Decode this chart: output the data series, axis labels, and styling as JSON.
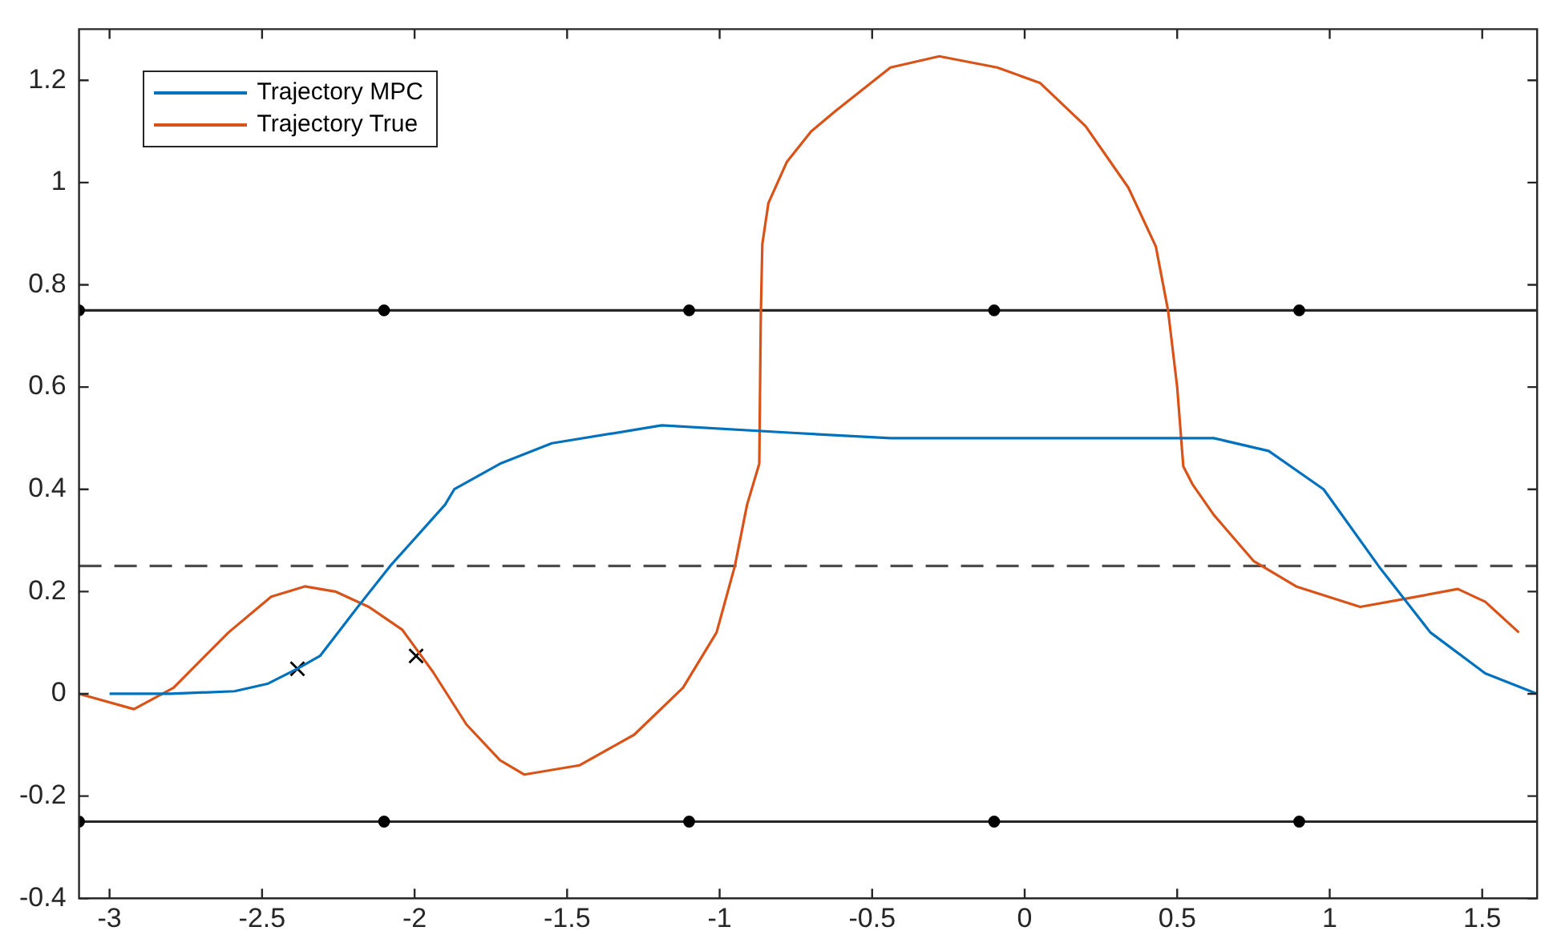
{
  "chart_data": {
    "type": "line",
    "xlim": [
      -3.1,
      1.68
    ],
    "ylim": [
      -0.4,
      1.3
    ],
    "xticks": [
      -3,
      -2.5,
      -2,
      -1.5,
      -1,
      -0.5,
      0,
      0.5,
      1,
      1.5
    ],
    "yticks": [
      -0.4,
      -0.2,
      0,
      0.2,
      0.4,
      0.6,
      0.8,
      1,
      1.2
    ],
    "grid": false,
    "legend": "top left",
    "series": [
      {
        "name": "Trajectory MPC",
        "color": "#0072bd",
        "marker": "none",
        "x": [
          -3.0,
          -2.8,
          -2.59,
          -2.48,
          -2.384,
          -2.31,
          -2.19,
          -2.08,
          -1.9,
          -1.87,
          -1.72,
          -1.55,
          -1.19,
          -0.75,
          -0.44,
          0.44,
          0.62,
          0.8,
          0.98,
          1.16,
          1.33,
          1.51,
          1.68
        ],
        "values": [
          0,
          0,
          0.005,
          0.02,
          0.049,
          0.074,
          0.167,
          0.25,
          0.37,
          0.4,
          0.45,
          0.49,
          0.525,
          0.51,
          0.5,
          0.5,
          0.5,
          0.475,
          0.4,
          0.25,
          0.12,
          0.04,
          0
        ]
      },
      {
        "name": "Trajectory True",
        "color": "#d95319",
        "marker": "none",
        "x": [
          -3.1,
          -2.92,
          -2.79,
          -2.61,
          -2.47,
          -2.36,
          -2.26,
          -2.15,
          -2.04,
          -1.94,
          -1.83,
          -1.72,
          -1.64,
          -1.46,
          -1.28,
          -1.12,
          -1.01,
          -0.95,
          -0.91,
          -0.87,
          -0.865,
          -0.86,
          -0.84,
          -0.78,
          -0.7,
          -0.62,
          -0.44,
          -0.28,
          -0.09,
          0.05,
          0.2,
          0.34,
          0.43,
          0.47,
          0.5,
          0.52,
          0.55,
          0.62,
          0.75,
          0.89,
          1.1,
          1.24,
          1.42,
          1.51,
          1.62
        ],
        "values": [
          0,
          -0.03,
          0.012,
          0.12,
          0.19,
          0.21,
          0.2,
          0.17,
          0.125,
          0.043,
          -0.06,
          -0.13,
          -0.158,
          -0.14,
          -0.08,
          0.012,
          0.12,
          0.25,
          0.37,
          0.45,
          0.74,
          0.88,
          0.96,
          1.04,
          1.1,
          1.14,
          1.225,
          1.247,
          1.225,
          1.195,
          1.11,
          0.99,
          0.875,
          0.75,
          0.6,
          0.445,
          0.41,
          0.35,
          0.26,
          0.21,
          0.17,
          0.185,
          0.205,
          0.18,
          0.12
        ]
      },
      {
        "type": "scatter",
        "color": "#000000",
        "marker": "cross",
        "x": [
          -2.384,
          -1.995
        ],
        "values": [
          0.049,
          0.074
        ]
      },
      {
        "type": "scatter",
        "color": "#000000",
        "marker": "circle",
        "x": [
          -3.1,
          -2.1,
          -1.1,
          -0.1,
          0.9,
          -3.1,
          -2.1,
          -1.1,
          -0.1,
          0.9
        ],
        "values": [
          0.75,
          0.75,
          0.75,
          0.75,
          0.75,
          -0.25,
          -0.25,
          -0.25,
          -0.25,
          -0.25
        ]
      }
    ],
    "ref_lines": [
      {
        "axis": "y",
        "value": 0.75,
        "color": "#262626",
        "line_style": "solid"
      },
      {
        "axis": "y",
        "value": 0.25,
        "color": "#4d4d4d",
        "line_style": "dashed"
      },
      {
        "axis": "y",
        "value": -0.25,
        "color": "#262626",
        "line_style": "solid"
      }
    ]
  }
}
